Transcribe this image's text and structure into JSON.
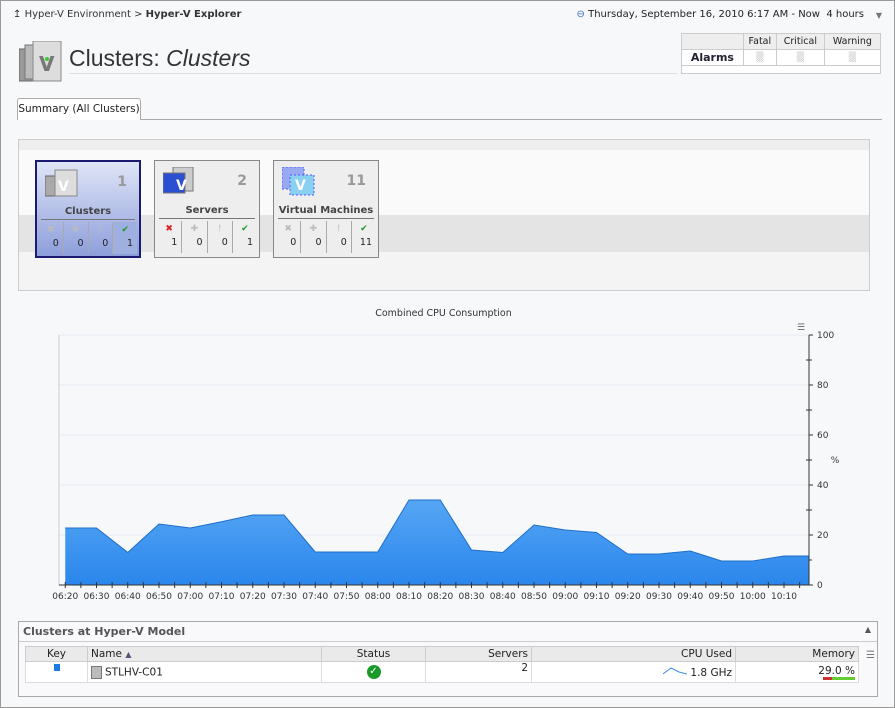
{
  "breadcrumb": {
    "parent": "Hyper-V Environment",
    "separator": ">",
    "current": "Hyper-V Explorer"
  },
  "time_range": {
    "text": "Thursday, September 16, 2010  6:17 AM - Now",
    "duration": "4 hours"
  },
  "page_title": {
    "prefix": "Clusters:",
    "name": "Clusters"
  },
  "alarms": {
    "row_label": "Alarms",
    "columns": [
      "Fatal",
      "Critical",
      "Warning"
    ]
  },
  "tabs": [
    {
      "label": "Summary (All Clusters)",
      "active": true
    }
  ],
  "tiles": [
    {
      "label": "Clusters",
      "count": "1",
      "selected": true,
      "states": [
        {
          "icon": "fatal-icon",
          "value": "0"
        },
        {
          "icon": "critical-icon",
          "value": "0"
        },
        {
          "icon": "warning-icon",
          "value": "0"
        },
        {
          "icon": "ok-icon",
          "value": "1"
        }
      ]
    },
    {
      "label": "Servers",
      "count": "2",
      "selected": false,
      "states": [
        {
          "icon": "fatal-icon",
          "value": "1"
        },
        {
          "icon": "critical-icon",
          "value": "0"
        },
        {
          "icon": "warning-icon",
          "value": "0"
        },
        {
          "icon": "ok-icon",
          "value": "1"
        }
      ]
    },
    {
      "label": "Virtual Machines",
      "count": "11",
      "selected": false,
      "states": [
        {
          "icon": "fatal-icon",
          "value": "0"
        },
        {
          "icon": "critical-icon",
          "value": "0"
        },
        {
          "icon": "warning-icon",
          "value": "0"
        },
        {
          "icon": "ok-icon",
          "value": "11"
        }
      ]
    }
  ],
  "chart_data": {
    "type": "area",
    "title": "Combined CPU Consumption",
    "ylabel": "%",
    "xlabel": "",
    "ylim": [
      0,
      100
    ],
    "yticks": [
      0,
      20,
      40,
      60,
      80,
      100
    ],
    "xlim": [
      "06:18",
      "10:18"
    ],
    "xticks": [
      "06:20",
      "06:30",
      "06:40",
      "06:50",
      "07:00",
      "07:10",
      "07:20",
      "07:30",
      "07:40",
      "07:50",
      "08:00",
      "08:10",
      "08:20",
      "08:30",
      "08:40",
      "08:50",
      "09:00",
      "09:10",
      "09:20",
      "09:30",
      "09:40",
      "09:50",
      "10:00",
      "10:10"
    ],
    "x": [
      "06:20",
      "06:30",
      "06:40",
      "06:50",
      "07:00",
      "07:10",
      "07:20",
      "07:30",
      "07:40",
      "07:50",
      "08:00",
      "08:10",
      "08:20",
      "08:30",
      "08:40",
      "08:50",
      "09:00",
      "09:10",
      "09:20",
      "09:30",
      "09:40",
      "09:50",
      "10:00",
      "10:10",
      "10:18"
    ],
    "values": [
      22.8,
      22.8,
      13,
      24.4,
      22.8,
      25.3,
      28,
      28,
      13.2,
      13.2,
      13.2,
      34,
      34,
      14,
      13,
      24,
      22,
      21,
      12.4,
      12.4,
      13.6,
      9.6,
      9.6,
      11.6,
      11.6
    ],
    "grid": true,
    "color": "#3a8fec"
  },
  "clusters_panel": {
    "title": "Clusters at Hyper-V Model",
    "columns": [
      "Key",
      "Name",
      "Status",
      "Servers",
      "CPU Used",
      "Memory"
    ],
    "rows": [
      {
        "key_color": "#1e7ae6",
        "name": "STLHV-C01",
        "status": "ok",
        "servers": "2",
        "cpu_used": "1.8 GHz",
        "memory": "29.0 %",
        "memory_fraction": 0.29
      }
    ]
  }
}
